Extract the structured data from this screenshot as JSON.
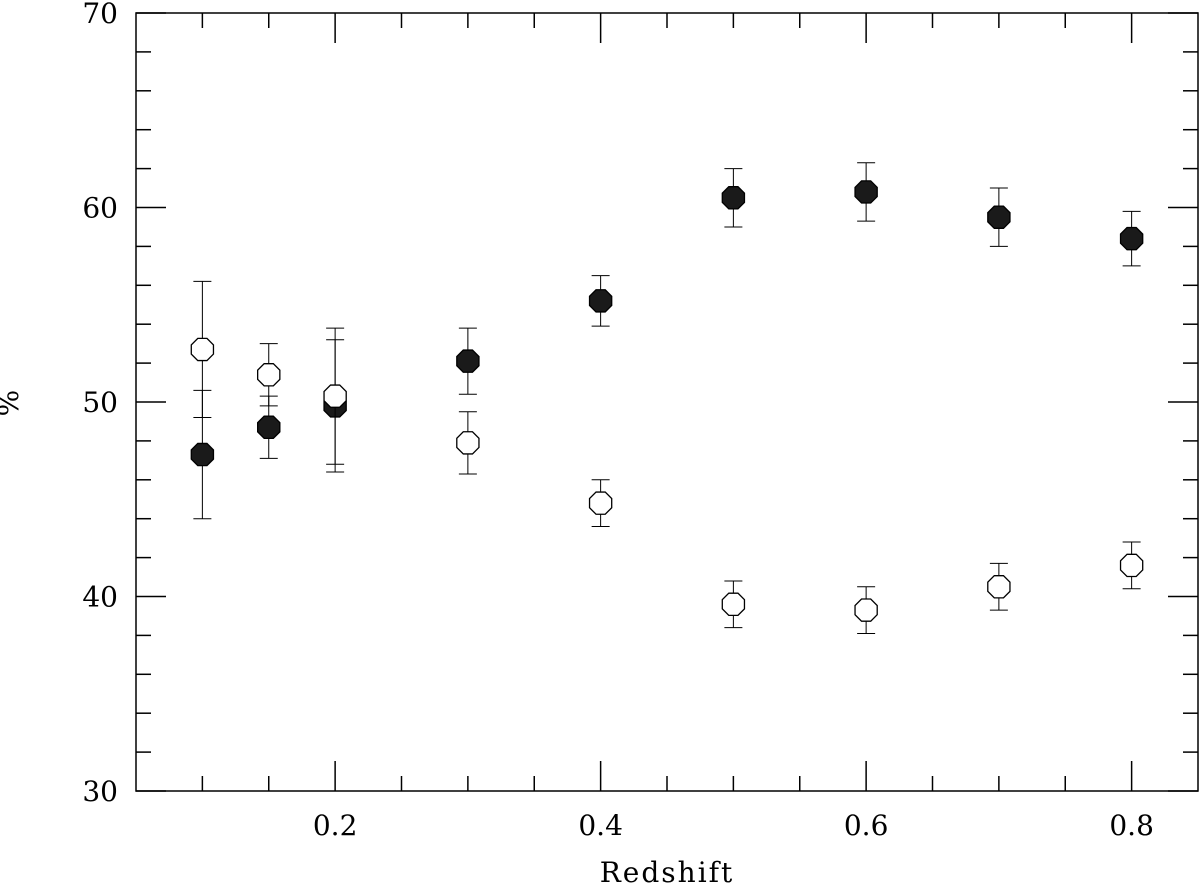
{
  "chart_data": {
    "type": "scatter",
    "title": "",
    "xlabel": "Redshift",
    "ylabel": "%",
    "xlim": [
      0.05,
      0.85
    ],
    "ylim": [
      30,
      70
    ],
    "x_major_ticks": [
      0.2,
      0.4,
      0.6,
      0.8
    ],
    "x_major_tick_labels": [
      "0.2",
      "0.4",
      "0.6",
      "0.8"
    ],
    "x_minor_ticks": [
      0.1,
      0.15,
      0.25,
      0.3,
      0.35,
      0.45,
      0.5,
      0.55,
      0.65,
      0.7,
      0.75
    ],
    "y_major_ticks": [
      30,
      40,
      50,
      60,
      70
    ],
    "y_major_tick_labels": [
      "30",
      "40",
      "50",
      "60",
      "70"
    ],
    "y_minor_ticks": [
      32,
      34,
      36,
      38,
      42,
      44,
      46,
      48,
      52,
      54,
      56,
      58,
      62,
      64,
      66,
      68
    ],
    "grid": false,
    "legend": "none",
    "series": [
      {
        "marker": "filled-octagon",
        "color": "#000000",
        "x": [
          0.1,
          0.15,
          0.2,
          0.3,
          0.4,
          0.5,
          0.6,
          0.7,
          0.8
        ],
        "y": [
          47.3,
          48.7,
          49.8,
          52.1,
          55.2,
          60.5,
          60.8,
          59.5,
          58.4
        ],
        "yerr": [
          3.3,
          1.6,
          3.4,
          1.7,
          1.3,
          1.5,
          1.5,
          1.5,
          1.4
        ]
      },
      {
        "marker": "open-octagon",
        "color": "#000000",
        "x": [
          0.1,
          0.15,
          0.2,
          0.3,
          0.4,
          0.5,
          0.6,
          0.7,
          0.8
        ],
        "y": [
          52.7,
          51.4,
          50.3,
          47.9,
          44.8,
          39.6,
          39.3,
          40.5,
          41.6
        ],
        "yerr": [
          3.5,
          1.6,
          3.5,
          1.6,
          1.2,
          1.2,
          1.2,
          1.2,
          1.2
        ]
      }
    ]
  }
}
